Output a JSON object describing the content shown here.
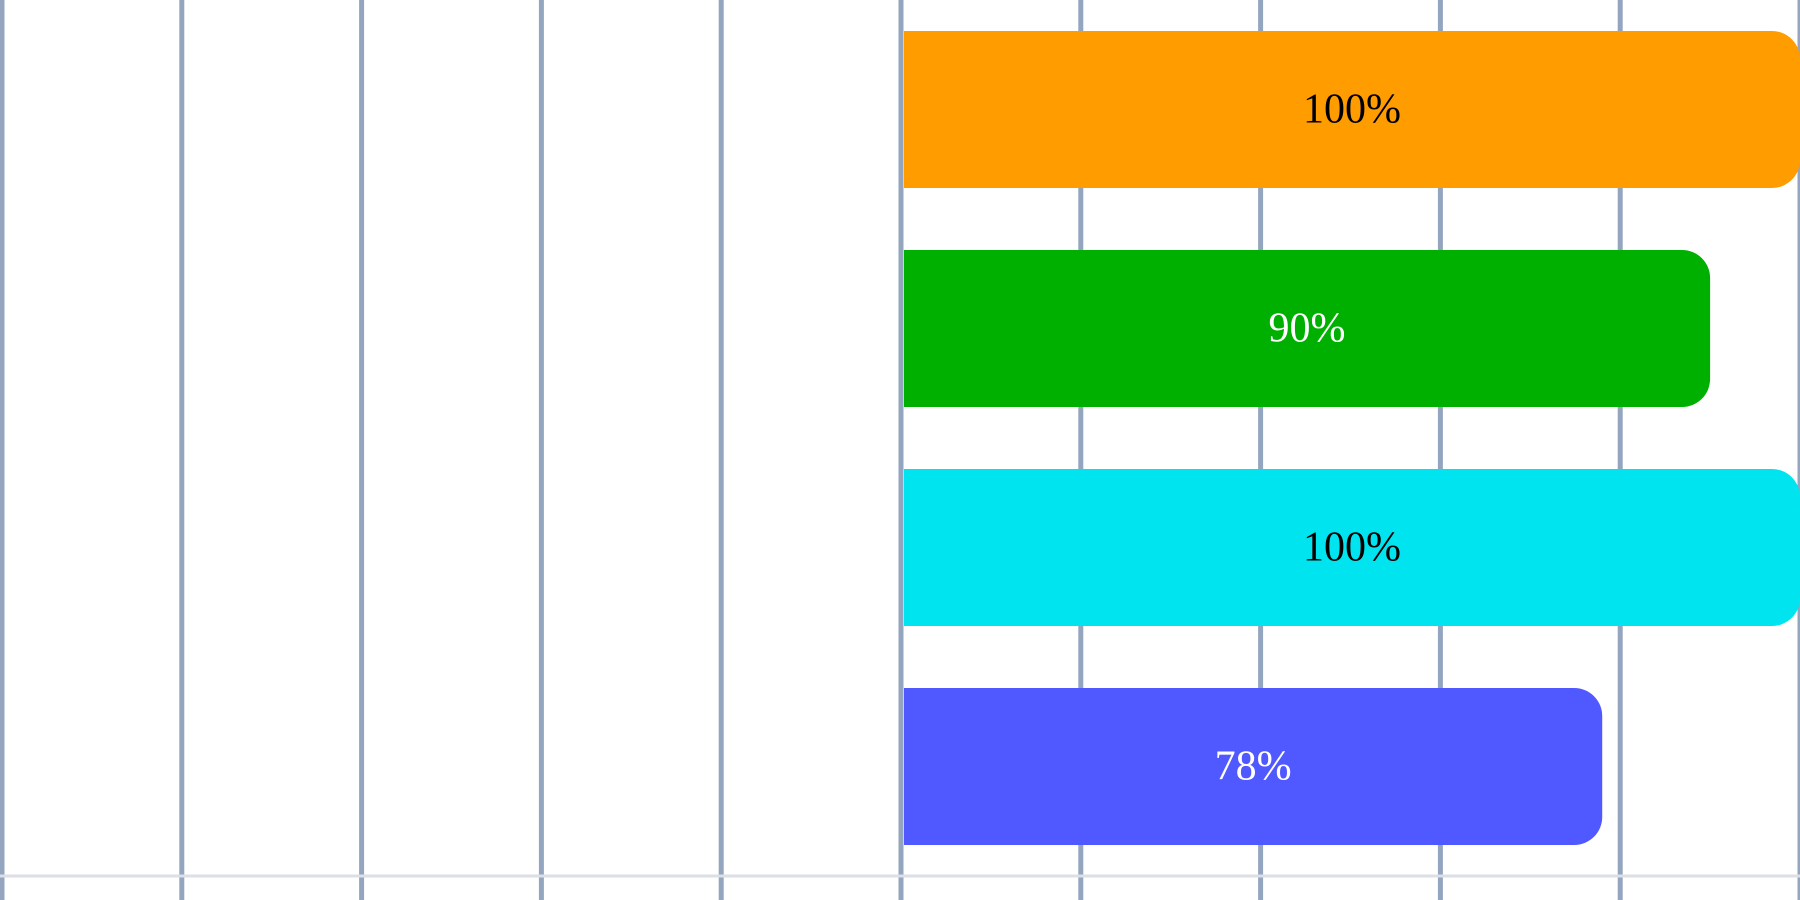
{
  "chart_data": {
    "type": "bar",
    "orientation": "horizontal",
    "x_axis": {
      "min": -100,
      "max": 100,
      "tick_step": 20
    },
    "grid": true,
    "bars": [
      {
        "value": 100,
        "label": "100%",
        "color": "#ff9d00",
        "label_color": "#000000"
      },
      {
        "value": 90,
        "label": "90%",
        "color": "#00b000",
        "label_color": "#ffffff"
      },
      {
        "value": 100,
        "label": "100%",
        "color": "#00e4f0",
        "label_color": "#000000"
      },
      {
        "value": 78,
        "label": "78%",
        "color": "#5059ff",
        "label_color": "#ffffff"
      }
    ]
  }
}
